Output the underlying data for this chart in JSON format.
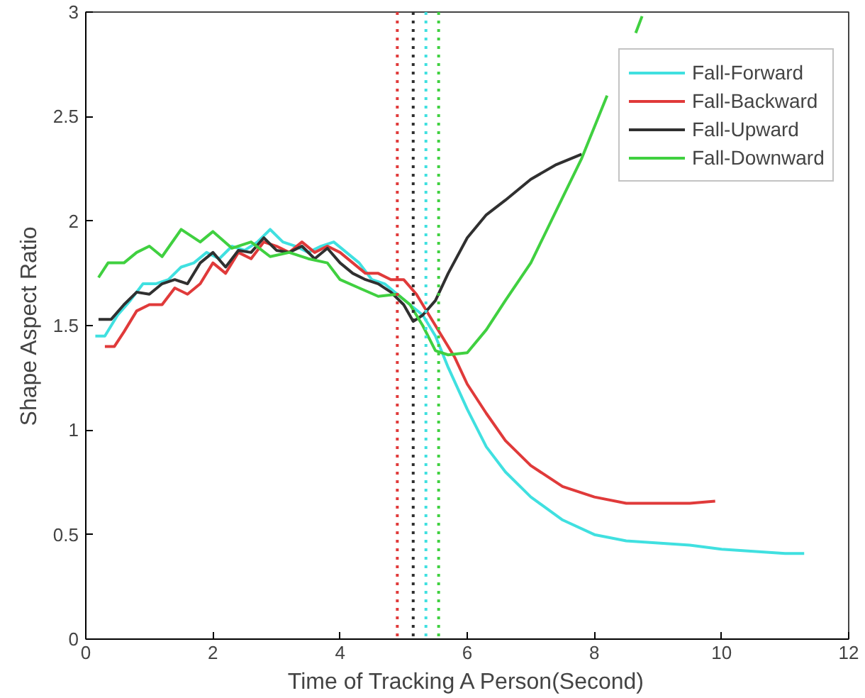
{
  "chart_data": {
    "type": "line",
    "xlabel": "Time of Tracking A Person(Second)",
    "ylabel": "Shape Aspect Ratio",
    "xlim": [
      0,
      12
    ],
    "ylim": [
      0,
      3
    ],
    "xticks": [
      0,
      2,
      4,
      6,
      8,
      10,
      12
    ],
    "yticks": [
      0,
      0.5,
      1,
      1.5,
      2,
      2.5,
      3
    ],
    "legend": "top right",
    "grid": false,
    "series": [
      {
        "name": "Fall-Forward",
        "color": "#40e0e0",
        "x": [
          0.15,
          0.3,
          0.5,
          0.7,
          0.9,
          1.1,
          1.3,
          1.5,
          1.7,
          1.9,
          2.1,
          2.3,
          2.5,
          2.7,
          2.9,
          3.1,
          3.3,
          3.5,
          3.7,
          3.9,
          4.1,
          4.3,
          4.5,
          4.7,
          4.9,
          5.1,
          5.3,
          5.5,
          5.7,
          6.0,
          6.3,
          6.6,
          7.0,
          7.5,
          8.0,
          8.5,
          9.0,
          9.5,
          10.0,
          10.5,
          11.0,
          11.3
        ],
        "values": [
          1.45,
          1.45,
          1.55,
          1.62,
          1.7,
          1.7,
          1.72,
          1.78,
          1.8,
          1.85,
          1.82,
          1.88,
          1.86,
          1.9,
          1.96,
          1.9,
          1.88,
          1.85,
          1.88,
          1.9,
          1.85,
          1.8,
          1.72,
          1.7,
          1.65,
          1.6,
          1.55,
          1.45,
          1.3,
          1.1,
          0.92,
          0.8,
          0.68,
          0.57,
          0.5,
          0.47,
          0.46,
          0.45,
          0.43,
          0.42,
          0.41,
          0.41
        ]
      },
      {
        "name": "Fall-Backward",
        "color": "#e03a3a",
        "x": [
          0.3,
          0.45,
          0.6,
          0.8,
          1.0,
          1.2,
          1.4,
          1.6,
          1.8,
          2.0,
          2.2,
          2.4,
          2.6,
          2.8,
          3.0,
          3.2,
          3.4,
          3.6,
          3.8,
          4.0,
          4.2,
          4.4,
          4.6,
          4.8,
          5.0,
          5.2,
          5.4,
          5.6,
          5.8,
          6.0,
          6.3,
          6.6,
          7.0,
          7.5,
          8.0,
          8.5,
          9.0,
          9.5,
          9.9
        ],
        "values": [
          1.4,
          1.4,
          1.47,
          1.57,
          1.6,
          1.6,
          1.68,
          1.65,
          1.7,
          1.8,
          1.75,
          1.85,
          1.82,
          1.9,
          1.88,
          1.85,
          1.9,
          1.85,
          1.88,
          1.85,
          1.8,
          1.75,
          1.75,
          1.72,
          1.72,
          1.65,
          1.55,
          1.45,
          1.35,
          1.22,
          1.08,
          0.95,
          0.83,
          0.73,
          0.68,
          0.65,
          0.65,
          0.65,
          0.66
        ]
      },
      {
        "name": "Fall-Upward",
        "color": "#303030",
        "x": [
          0.2,
          0.4,
          0.6,
          0.8,
          1.0,
          1.2,
          1.4,
          1.6,
          1.8,
          2.0,
          2.2,
          2.4,
          2.6,
          2.8,
          3.0,
          3.2,
          3.4,
          3.6,
          3.8,
          4.0,
          4.2,
          4.4,
          4.6,
          4.8,
          5.0,
          5.15,
          5.3,
          5.5,
          5.7,
          6.0,
          6.3,
          6.6,
          7.0,
          7.4,
          7.8
        ],
        "values": [
          1.53,
          1.53,
          1.6,
          1.66,
          1.65,
          1.7,
          1.72,
          1.7,
          1.8,
          1.85,
          1.78,
          1.86,
          1.85,
          1.92,
          1.86,
          1.85,
          1.88,
          1.82,
          1.87,
          1.8,
          1.75,
          1.72,
          1.7,
          1.66,
          1.6,
          1.52,
          1.55,
          1.62,
          1.75,
          1.92,
          2.03,
          2.1,
          2.2,
          2.27,
          2.32
        ]
      },
      {
        "name": "Fall-Downward",
        "color": "#40d040",
        "x": [
          0.2,
          0.35,
          0.6,
          0.8,
          1.0,
          1.2,
          1.5,
          1.8,
          2.0,
          2.3,
          2.6,
          2.9,
          3.2,
          3.5,
          3.8,
          4.0,
          4.3,
          4.6,
          4.9,
          5.1,
          5.3,
          5.5,
          5.7,
          6.0,
          6.3,
          6.6,
          7.0,
          7.4,
          7.8,
          8.2,
          8.5,
          8.65,
          8.75
        ],
        "values": [
          1.73,
          1.8,
          1.8,
          1.85,
          1.88,
          1.83,
          1.96,
          1.9,
          1.95,
          1.87,
          1.9,
          1.83,
          1.85,
          1.82,
          1.8,
          1.72,
          1.68,
          1.64,
          1.65,
          1.6,
          1.5,
          1.38,
          1.36,
          1.37,
          1.48,
          1.62,
          1.8,
          2.05,
          2.3,
          2.6,
          null,
          2.9,
          2.98
        ]
      }
    ],
    "ref_lines": [
      {
        "axis": "x",
        "value": 4.9,
        "color": "#e03a3a",
        "line_style": "dotted"
      },
      {
        "axis": "x",
        "value": 5.15,
        "color": "#303030",
        "line_style": "dotted"
      },
      {
        "axis": "x",
        "value": 5.35,
        "color": "#40e0e0",
        "line_style": "dotted"
      },
      {
        "axis": "x",
        "value": 5.55,
        "color": "#40d040",
        "line_style": "dotted"
      }
    ]
  }
}
